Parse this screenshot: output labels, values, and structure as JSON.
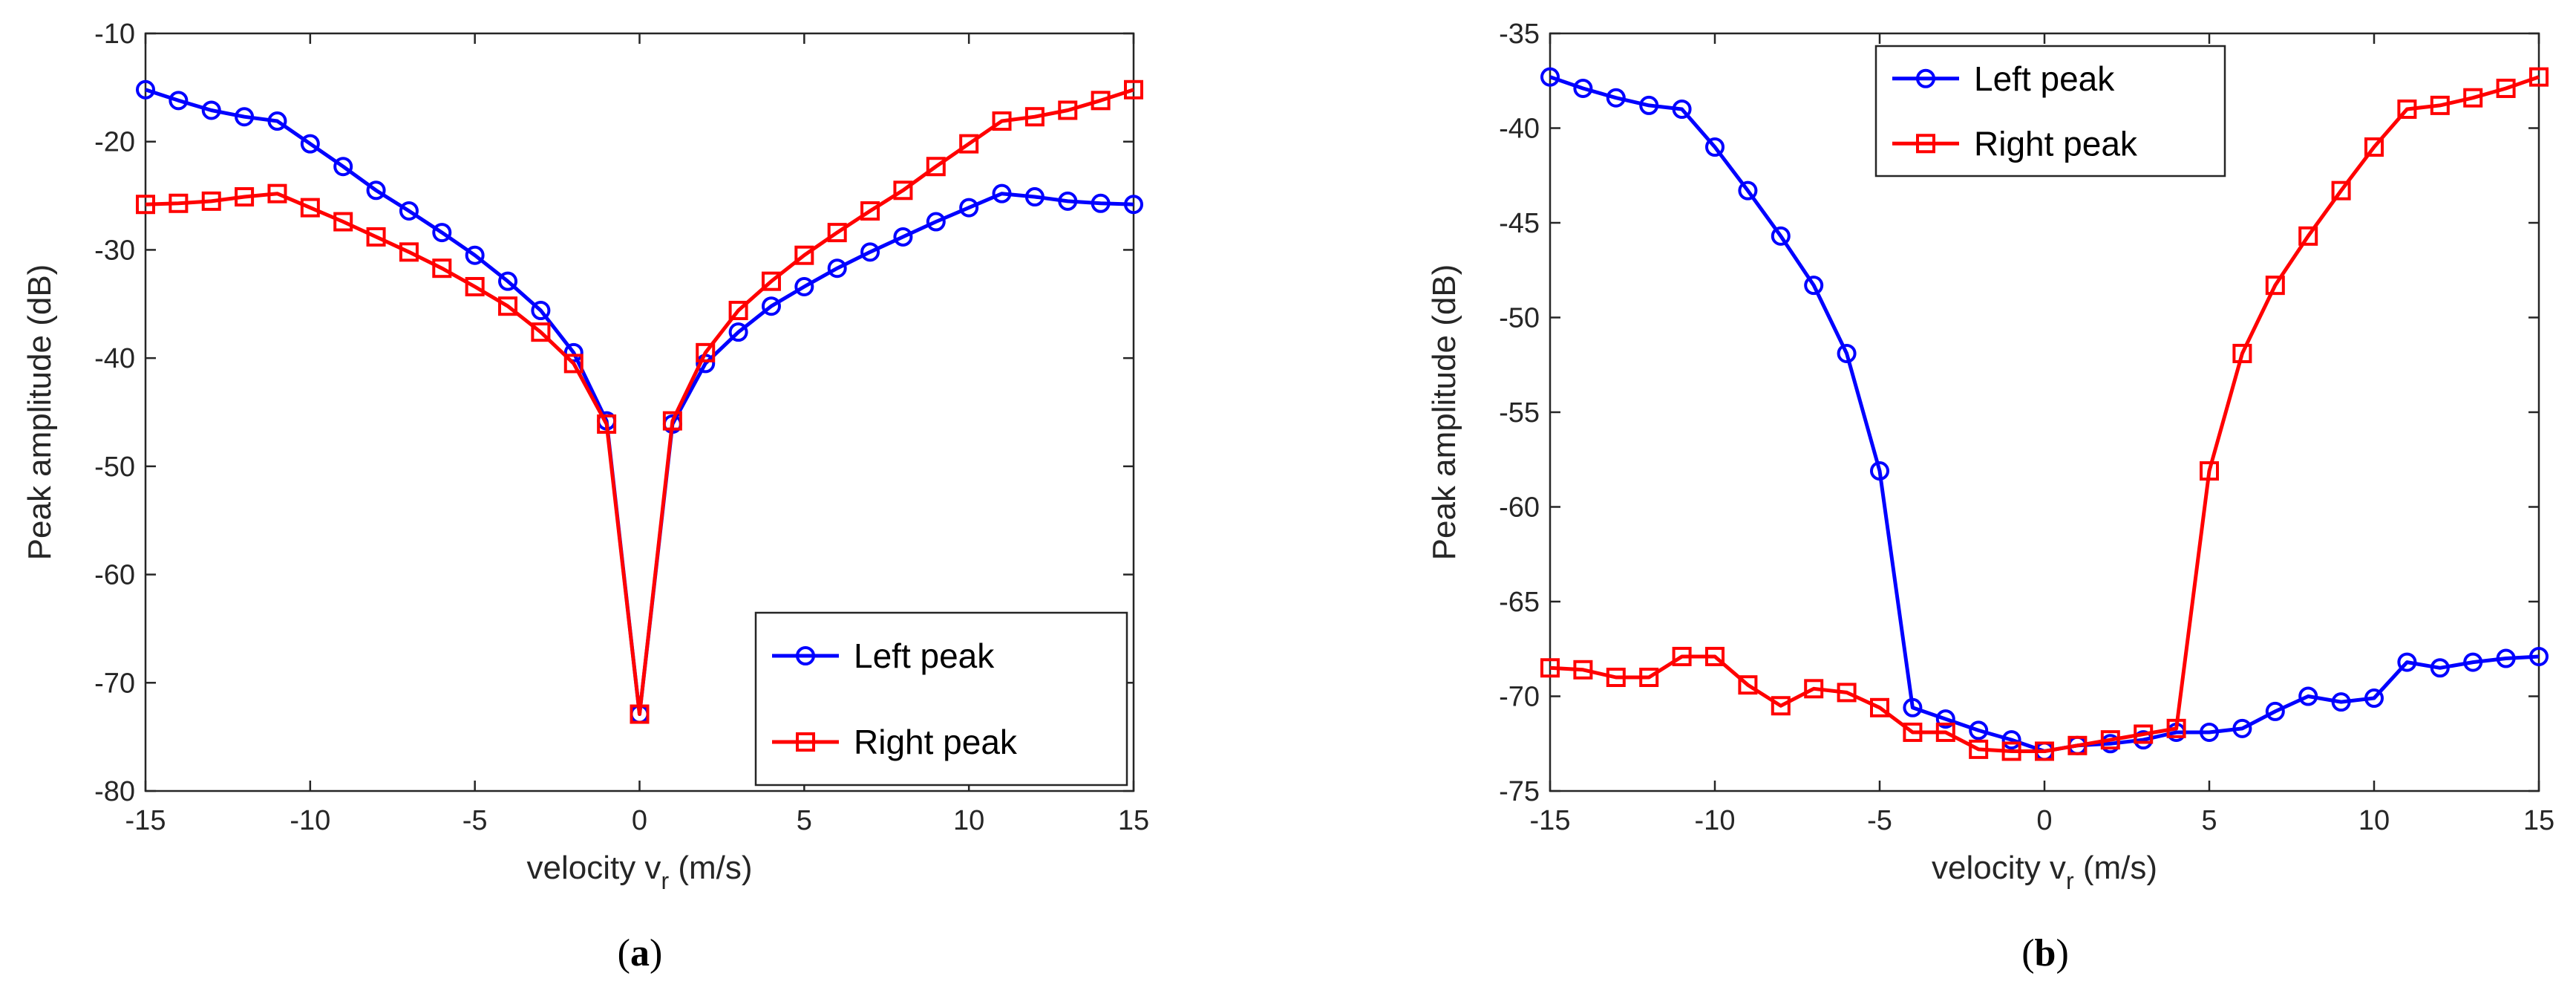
{
  "chart_data": [
    {
      "type": "line",
      "caption_open": "(",
      "caption_letter": "a",
      "caption_close": ")",
      "xlabel_main": "velocity v",
      "xlabel_sub": "r",
      "xlabel_unit": " (m/s)",
      "ylabel": "Peak amplitude (dB)",
      "xlim": [
        -15,
        15
      ],
      "ylim": [
        -80,
        -10
      ],
      "xticks": [
        -15,
        -10,
        -5,
        0,
        5,
        10,
        15
      ],
      "yticks": [
        -80,
        -70,
        -60,
        -50,
        -40,
        -30,
        -20,
        -10
      ],
      "legend_position": "bottom-right",
      "x": [
        -15,
        -14,
        -13,
        -12,
        -11,
        -10,
        -9,
        -8,
        -7,
        -6,
        -5,
        -4,
        -3,
        -2,
        -1,
        0,
        1,
        2,
        3,
        4,
        5,
        6,
        7,
        8,
        9,
        10,
        11,
        12,
        13,
        14,
        15
      ],
      "series": [
        {
          "name": "Left peak",
          "color": "#0000ff",
          "marker": "circle",
          "values": [
            -15.2,
            -16.2,
            -17.1,
            -17.7,
            -18.1,
            -20.2,
            -22.3,
            -24.5,
            -26.4,
            -28.4,
            -30.5,
            -32.9,
            -35.6,
            -39.5,
            -45.8,
            -72.9,
            -46.1,
            -40.5,
            -37.6,
            -35.2,
            -33.4,
            -31.7,
            -30.2,
            -28.8,
            -27.4,
            -26.1,
            -24.8,
            -25.1,
            -25.5,
            -25.7,
            -25.8
          ]
        },
        {
          "name": "Right peak",
          "color": "#ff0000",
          "marker": "square",
          "values": [
            -25.8,
            -25.7,
            -25.5,
            -25.1,
            -24.8,
            -26.1,
            -27.4,
            -28.8,
            -30.2,
            -31.7,
            -33.4,
            -35.2,
            -37.6,
            -40.5,
            -46.1,
            -72.9,
            -45.8,
            -39.5,
            -35.6,
            -32.9,
            -30.5,
            -28.4,
            -26.4,
            -24.5,
            -22.3,
            -20.2,
            -18.1,
            -17.7,
            -17.1,
            -16.2,
            -15.2
          ]
        }
      ]
    },
    {
      "type": "line",
      "caption_open": "(",
      "caption_letter": "b",
      "caption_close": ")",
      "xlabel_main": "velocity v",
      "xlabel_sub": "r",
      "xlabel_unit": " (m/s)",
      "ylabel": "Peak amplitude (dB)",
      "xlim": [
        -15,
        15
      ],
      "ylim": [
        -75,
        -35
      ],
      "xticks": [
        -15,
        -10,
        -5,
        0,
        5,
        10,
        15
      ],
      "yticks": [
        -75,
        -70,
        -65,
        -60,
        -55,
        -50,
        -45,
        -40,
        -35
      ],
      "legend_position": "top-left",
      "x": [
        -15,
        -14,
        -13,
        -12,
        -11,
        -10,
        -9,
        -8,
        -7,
        -6,
        -5,
        -4,
        -3,
        -2,
        -1,
        0,
        1,
        2,
        3,
        4,
        5,
        6,
        7,
        8,
        9,
        10,
        11,
        12,
        13,
        14,
        15
      ],
      "series": [
        {
          "name": "Left peak",
          "color": "#0000ff",
          "marker": "circle",
          "values": [
            -37.3,
            -37.9,
            -38.4,
            -38.8,
            -39.0,
            -41.0,
            -43.3,
            -45.7,
            -48.3,
            -51.9,
            -58.1,
            -70.6,
            -71.2,
            -71.8,
            -72.3,
            -72.9,
            -72.6,
            -72.5,
            -72.3,
            -71.9,
            -71.9,
            -71.7,
            -70.8,
            -70.0,
            -70.3,
            -70.1,
            -68.2,
            -68.5,
            -68.2,
            -68.0,
            -67.9
          ]
        },
        {
          "name": "Right peak",
          "color": "#ff0000",
          "marker": "square",
          "values": [
            -68.5,
            -68.6,
            -69.0,
            -69.0,
            -67.9,
            -67.9,
            -69.4,
            -70.5,
            -69.6,
            -69.8,
            -70.6,
            -71.9,
            -71.9,
            -72.8,
            -72.9,
            -72.9,
            -72.6,
            -72.3,
            -72.0,
            -71.7,
            -58.1,
            -51.9,
            -48.3,
            -45.7,
            -43.3,
            -41.0,
            -39.0,
            -38.8,
            -38.4,
            -37.9,
            -37.3
          ]
        }
      ]
    }
  ]
}
